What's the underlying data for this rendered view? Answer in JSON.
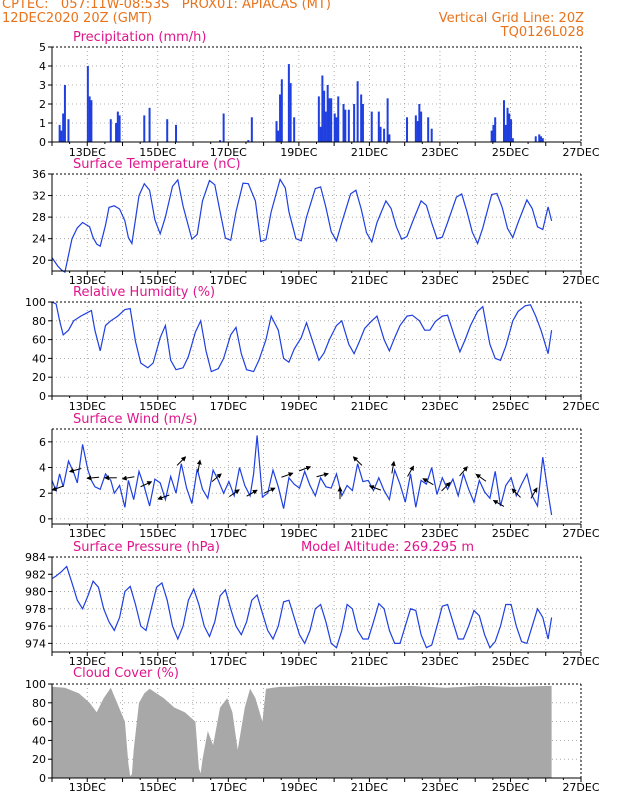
{
  "header": {
    "line1_left": "CPTEC:   057:11W-08:53S   PROX01: APIACAS (MT)",
    "line2_left": "12DEC2020 20Z (GMT)",
    "line2_right": "Vertical Grid Line: 20Z",
    "line3_right": "TQ0126L028"
  },
  "colors": {
    "header": "#e8731c",
    "panel_title": "#e0158c",
    "series": "#1f3fe0",
    "cloud": "#a8a8a8",
    "axis_text": "#000000"
  },
  "x_axis": {
    "start": "12DEC2020 20Z",
    "end": "27DEC2020 20Z",
    "tick_labels": [
      "13DEC",
      "15DEC",
      "17DEC",
      "19DEC",
      "21DEC",
      "23DEC",
      "25DEC",
      "27DEC"
    ],
    "tick_days": [
      13,
      15,
      17,
      19,
      21,
      23,
      25,
      27
    ]
  },
  "chart_data": [
    {
      "id": "precip",
      "type": "bar",
      "title": "Precipitation (mm/h)",
      "ylim": [
        0,
        5
      ],
      "yticks": [
        0,
        1,
        2,
        3,
        4,
        5
      ],
      "grid": true,
      "x": [
        13.05,
        13.1,
        13.15,
        13.2,
        13.3,
        13.85,
        13.9,
        13.95,
        14.5,
        14.65,
        14.7,
        14.75,
        15.45,
        15.6,
        16.1,
        16.35,
        17.6,
        17.7,
        18.4,
        18.5,
        19.2,
        19.25,
        19.3,
        19.35,
        19.55,
        19.6,
        19.7,
        20.4,
        20.45,
        20.5,
        20.55,
        20.6,
        20.65,
        20.7,
        20.75,
        20.85,
        20.9,
        20.95,
        21.1,
        21.15,
        21.25,
        21.4,
        21.5,
        21.6,
        21.65,
        21.9,
        22.1,
        22.15,
        22.25,
        22.35,
        22.4,
        22.9,
        23.15,
        23.2,
        23.25,
        23.3,
        23.5,
        23.6,
        25.3,
        25.35,
        25.4,
        25.65,
        25.7,
        25.75,
        25.8,
        25.85,
        25.9,
        26.55,
        26.65,
        26.7,
        26.75
      ],
      "values": [
        0.9,
        0.6,
        1.5,
        3.0,
        1.2,
        4.0,
        2.4,
        2.2,
        1.2,
        1.0,
        1.6,
        1.4,
        1.4,
        1.8,
        1.2,
        0.9,
        0.1,
        1.5,
        0.1,
        1.3,
        1.1,
        0.6,
        2.5,
        3.3,
        4.1,
        3.1,
        1.3,
        2.4,
        0.8,
        3.5,
        2.7,
        1.6,
        3.0,
        2.3,
        2.3,
        1.5,
        1.3,
        2.4,
        2.0,
        1.7,
        1.7,
        2.0,
        3.2,
        2.5,
        2.0,
        1.6,
        1.6,
        0.8,
        0.7,
        2.3,
        0.4,
        1.3,
        1.4,
        1.1,
        2.0,
        1.6,
        1.3,
        0.7,
        0.6,
        0.9,
        1.3,
        2.2,
        0.9,
        1.8,
        1.5,
        1.2,
        0.2,
        0.3,
        0.4,
        0.3,
        0.2
      ]
    },
    {
      "id": "temp",
      "type": "line",
      "title": "Surface Temperature (nC)",
      "ylim": [
        18,
        36
      ],
      "yticks": [
        20,
        24,
        28,
        32,
        36
      ],
      "grid": true,
      "x": [
        12.83,
        13.0,
        13.1,
        13.2,
        13.4,
        13.55,
        13.7,
        13.9,
        14.0,
        14.1,
        14.2,
        14.35,
        14.45,
        14.6,
        14.75,
        14.9,
        15.0,
        15.1,
        15.3,
        15.45,
        15.6,
        15.75,
        15.9,
        16.05,
        16.25,
        16.4,
        16.55,
        16.8,
        16.95,
        17.1,
        17.3,
        17.45,
        17.6,
        17.75,
        17.9,
        18.05,
        18.25,
        18.4,
        18.6,
        18.75,
        18.9,
        19.05,
        19.3,
        19.45,
        19.55,
        19.75,
        19.9,
        20.05,
        20.3,
        20.45,
        20.6,
        20.75,
        20.9,
        21.05,
        21.3,
        21.45,
        21.6,
        21.75,
        21.9,
        22.05,
        22.3,
        22.45,
        22.6,
        22.75,
        22.9,
        23.05,
        23.3,
        23.45,
        23.6,
        23.75,
        23.9,
        24.05,
        24.3,
        24.45,
        24.6,
        24.75,
        24.9,
        25.05,
        25.3,
        25.45,
        25.6,
        25.75,
        25.9,
        26.05,
        26.3,
        26.45,
        26.6,
        26.75,
        26.9,
        27.0
      ],
      "values": [
        20.5,
        18.9,
        18.2,
        17.8,
        24.0,
        26.0,
        27.0,
        26.2,
        24.2,
        23.0,
        22.6,
        26.5,
        29.8,
        30.1,
        29.5,
        27.3,
        24.2,
        23.1,
        32.0,
        34.2,
        33.0,
        27.5,
        24.9,
        28.0,
        33.7,
        34.9,
        30.0,
        23.9,
        24.8,
        31.0,
        34.8,
        34.0,
        29.0,
        24.1,
        23.7,
        29.0,
        34.3,
        34.2,
        31.0,
        23.5,
        23.8,
        29.0,
        35.0,
        33.4,
        29.0,
        24.0,
        23.6,
        28.0,
        33.3,
        33.6,
        29.8,
        25.3,
        23.6,
        27.0,
        32.3,
        33.0,
        29.5,
        25.1,
        23.4,
        27.0,
        31.0,
        29.6,
        26.2,
        23.9,
        24.4,
        27.0,
        31.0,
        30.2,
        26.9,
        24.0,
        24.3,
        27.0,
        31.7,
        32.3,
        29.0,
        25.2,
        23.1,
        26.0,
        32.2,
        32.4,
        29.8,
        25.9,
        24.2,
        27.0,
        31.2,
        29.6,
        26.2,
        25.7,
        29.9,
        27.3
      ]
    },
    {
      "id": "rh",
      "type": "line",
      "title": "Relative Humidity (%)",
      "ylim": [
        0,
        100
      ],
      "yticks": [
        0,
        20,
        40,
        60,
        80,
        100
      ],
      "grid": true,
      "x": [
        12.83,
        12.95,
        13.05,
        13.15,
        13.3,
        13.45,
        13.65,
        13.8,
        13.95,
        14.05,
        14.2,
        14.35,
        14.5,
        14.7,
        14.9,
        15.05,
        15.2,
        15.35,
        15.55,
        15.7,
        15.9,
        16.05,
        16.2,
        16.35,
        16.55,
        16.7,
        16.9,
        17.05,
        17.2,
        17.35,
        17.55,
        17.7,
        17.9,
        18.05,
        18.2,
        18.35,
        18.55,
        18.7,
        18.9,
        19.05,
        19.25,
        19.4,
        19.55,
        19.7,
        19.9,
        20.05,
        20.25,
        20.4,
        20.55,
        20.7,
        20.9,
        21.05,
        21.25,
        21.4,
        21.55,
        21.7,
        21.9,
        22.05,
        22.25,
        22.4,
        22.55,
        22.7,
        22.9,
        23.05,
        23.25,
        23.4,
        23.55,
        23.7,
        23.9,
        24.05,
        24.25,
        24.4,
        24.55,
        24.7,
        24.9,
        25.05,
        25.25,
        25.4,
        25.55,
        25.7,
        25.9,
        26.05,
        26.25,
        26.4,
        26.55,
        26.7,
        26.9,
        27.0
      ],
      "values": [
        100,
        98,
        80,
        65,
        70,
        80,
        85,
        88,
        91,
        70,
        48,
        75,
        80,
        85,
        92,
        93,
        58,
        35,
        30,
        35,
        62,
        75,
        38,
        28,
        30,
        42,
        68,
        80,
        48,
        26,
        29,
        40,
        65,
        73,
        45,
        28,
        26,
        38,
        60,
        85,
        70,
        40,
        36,
        50,
        62,
        78,
        55,
        38,
        46,
        60,
        75,
        80,
        55,
        45,
        58,
        72,
        80,
        85,
        60,
        48,
        62,
        75,
        85,
        86,
        80,
        70,
        70,
        79,
        85,
        86,
        63,
        47,
        60,
        75,
        90,
        95,
        55,
        40,
        38,
        53,
        80,
        90,
        96,
        97,
        85,
        70,
        45,
        70
      ]
    },
    {
      "id": "wind",
      "type": "line",
      "title": "Surface Wind (m/s)",
      "ylim": [
        -0.4,
        7
      ],
      "yticks": [
        0,
        2,
        4,
        6
      ],
      "grid": true,
      "x": [
        12.83,
        12.95,
        13.05,
        13.15,
        13.3,
        13.45,
        13.55,
        13.7,
        13.85,
        13.95,
        14.05,
        14.2,
        14.35,
        14.5,
        14.6,
        14.75,
        14.9,
        15.0,
        15.15,
        15.3,
        15.45,
        15.6,
        15.75,
        15.9,
        16.05,
        16.2,
        16.35,
        16.5,
        16.65,
        16.8,
        16.95,
        17.1,
        17.25,
        17.4,
        17.55,
        17.7,
        17.85,
        18.0,
        18.15,
        18.3,
        18.45,
        18.55,
        18.65,
        18.8,
        18.95,
        19.1,
        19.25,
        19.4,
        19.55,
        19.7,
        19.85,
        20.0,
        20.15,
        20.3,
        20.45,
        20.6,
        20.75,
        20.9,
        21.05,
        21.2,
        21.35,
        21.5,
        21.65,
        21.8,
        21.95,
        22.1,
        22.25,
        22.4,
        22.55,
        22.7,
        22.85,
        23.0,
        23.15,
        23.3,
        23.45,
        23.6,
        23.75,
        23.9,
        24.05,
        24.2,
        24.35,
        24.5,
        24.65,
        24.8,
        24.95,
        25.1,
        25.25,
        25.4,
        25.55,
        25.7,
        25.85,
        26.0,
        26.15,
        26.3,
        26.45,
        26.6,
        26.75,
        26.9,
        27.0
      ],
      "values": [
        3.0,
        2.2,
        3.5,
        2.5,
        4.5,
        3.6,
        2.8,
        5.8,
        3.8,
        3.0,
        2.5,
        2.3,
        3.5,
        3.0,
        2.0,
        2.6,
        0.9,
        3.0,
        1.5,
        3.7,
        2.5,
        1.0,
        3.1,
        2.8,
        1.5,
        3.3,
        2.0,
        4.3,
        2.4,
        1.2,
        3.9,
        2.3,
        1.6,
        3.8,
        3.0,
        2.0,
        2.9,
        1.8,
        4.0,
        2.6,
        1.8,
        3.5,
        6.5,
        1.7,
        2.0,
        3.8,
        2.5,
        0.8,
        3.2,
        2.7,
        2.4,
        3.7,
        2.6,
        1.8,
        3.2,
        2.5,
        2.4,
        3.5,
        1.8,
        2.6,
        2.2,
        4.3,
        2.9,
        3.0,
        2.2,
        3.2,
        2.2,
        1.5,
        3.8,
        2.7,
        1.3,
        3.5,
        0.9,
        3.0,
        2.7,
        4.0,
        1.9,
        3.2,
        2.3,
        3.1,
        1.8,
        3.5,
        2.3,
        1.3,
        3.0,
        2.1,
        1.6,
        3.7,
        1.0,
        2.6,
        3.2,
        1.8,
        2.7,
        3.5,
        1.8,
        1.0,
        4.8,
        2.0,
        0.3
      ]
    },
    {
      "id": "pres",
      "type": "line",
      "title": "Surface Pressure (hPa)",
      "subtitle": "Model Altitude: 269.295 m",
      "ylim": [
        973,
        984
      ],
      "yticks": [
        974,
        976,
        978,
        980,
        982,
        984
      ],
      "grid": true,
      "x": [
        12.83,
        12.95,
        13.1,
        13.25,
        13.4,
        13.55,
        13.7,
        13.85,
        14.0,
        14.15,
        14.3,
        14.45,
        14.6,
        14.75,
        14.9,
        15.05,
        15.2,
        15.35,
        15.5,
        15.65,
        15.8,
        15.95,
        16.1,
        16.25,
        16.4,
        16.55,
        16.7,
        16.85,
        17.0,
        17.15,
        17.3,
        17.45,
        17.6,
        17.75,
        17.9,
        18.05,
        18.2,
        18.35,
        18.5,
        18.65,
        18.8,
        18.95,
        19.1,
        19.25,
        19.4,
        19.55,
        19.7,
        19.85,
        20.0,
        20.15,
        20.3,
        20.45,
        20.6,
        20.75,
        20.9,
        21.05,
        21.2,
        21.35,
        21.5,
        21.65,
        21.8,
        21.95,
        22.1,
        22.25,
        22.4,
        22.55,
        22.7,
        22.85,
        23.0,
        23.15,
        23.3,
        23.45,
        23.6,
        23.75,
        23.9,
        24.05,
        24.2,
        24.35,
        24.5,
        24.65,
        24.8,
        24.95,
        25.1,
        25.25,
        25.4,
        25.55,
        25.7,
        25.85,
        26.0,
        26.15,
        26.3,
        26.45,
        26.6,
        26.75,
        26.9,
        27.0
      ],
      "values": [
        981.5,
        981.8,
        982.3,
        982.9,
        981.0,
        979.0,
        978.0,
        979.5,
        981.2,
        980.5,
        978.0,
        976.5,
        975.5,
        977.0,
        980.0,
        980.6,
        978.5,
        976.0,
        975.5,
        978.0,
        980.5,
        981.0,
        979.0,
        976.0,
        974.5,
        976.0,
        979.0,
        980.3,
        978.5,
        976.0,
        974.8,
        976.5,
        979.5,
        980.2,
        978.0,
        976.0,
        975.0,
        976.5,
        979.0,
        979.6,
        977.5,
        975.5,
        974.5,
        976.0,
        978.8,
        979.0,
        977.0,
        975.0,
        974.0,
        975.5,
        978.0,
        978.5,
        976.5,
        974.0,
        973.5,
        975.5,
        978.5,
        978.0,
        975.5,
        974.5,
        974.5,
        976.5,
        978.6,
        978.0,
        975.5,
        974.0,
        974.0,
        976.0,
        978.0,
        977.8,
        975.0,
        973.5,
        973.8,
        976.0,
        978.3,
        978.5,
        976.5,
        974.5,
        974.5,
        976.0,
        977.8,
        977.2,
        975.0,
        973.5,
        974.2,
        976.0,
        978.5,
        978.5,
        976.0,
        974.2,
        974.0,
        976.0,
        978.0,
        977.0,
        974.5,
        977.0
      ]
    },
    {
      "id": "cloud",
      "type": "area",
      "title": "Cloud Cover (%)",
      "ylim": [
        0,
        100
      ],
      "yticks": [
        0,
        20,
        40,
        60,
        80,
        100
      ],
      "grid": true,
      "x": [
        12.83,
        13.2,
        13.6,
        13.9,
        14.1,
        14.3,
        14.5,
        14.9,
        15.0,
        15.05,
        15.1,
        15.15,
        15.3,
        15.45,
        15.6,
        16.0,
        16.3,
        16.6,
        16.9,
        17.0,
        17.05,
        17.1,
        17.25,
        17.4,
        17.6,
        17.8,
        17.95,
        18.1,
        18.3,
        18.45,
        18.6,
        18.8,
        18.9,
        19.1,
        19.3,
        19.6,
        20.0,
        20.5,
        21.0,
        22.0,
        23.0,
        24.0,
        25.0,
        26.0,
        27.0
      ],
      "values": [
        97,
        96,
        90,
        80,
        70,
        85,
        96,
        60,
        15,
        2,
        4,
        30,
        80,
        90,
        95,
        85,
        75,
        70,
        60,
        10,
        5,
        20,
        50,
        35,
        75,
        85,
        70,
        30,
        75,
        95,
        85,
        60,
        95,
        96,
        97,
        97,
        98,
        98,
        98,
        97,
        98,
        96,
        98,
        97,
        98
      ]
    }
  ]
}
